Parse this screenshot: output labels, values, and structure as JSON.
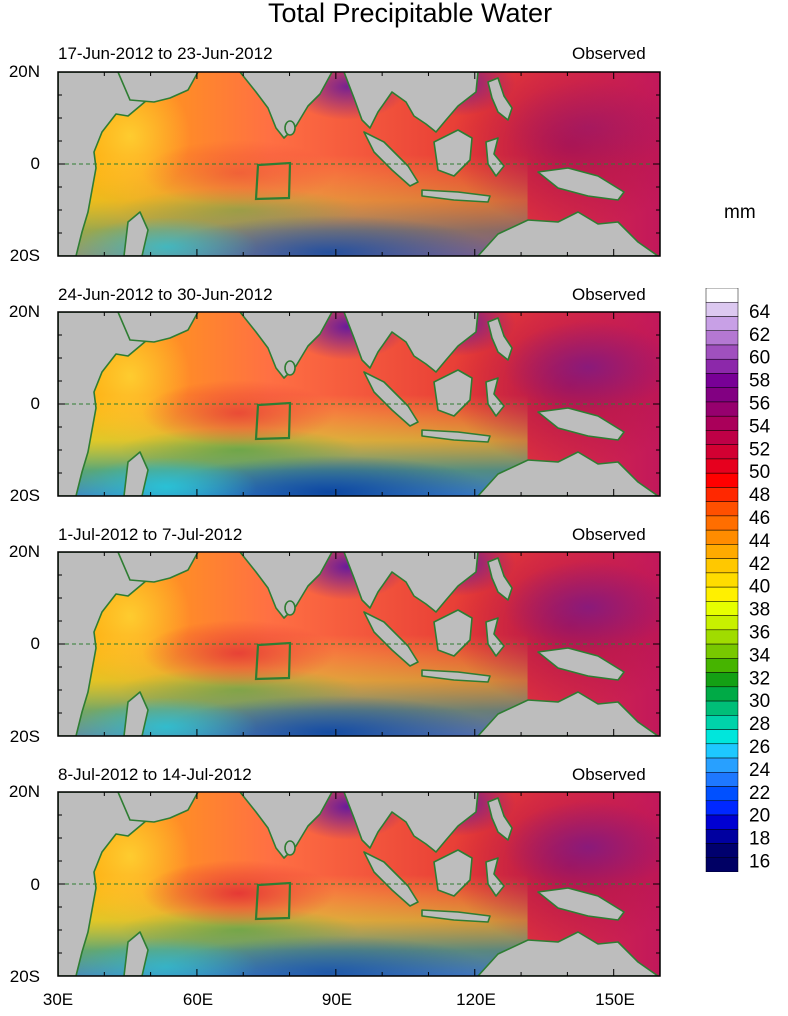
{
  "title": "Total Precipitable Water",
  "unit": "mm",
  "panels": [
    {
      "period": "17-Jun-2012 to 23-Jun-2012",
      "tag": "Observed"
    },
    {
      "period": "24-Jun-2012 to 30-Jun-2012",
      "tag": "Observed"
    },
    {
      "period": "1-Jul-2012 to 7-Jul-2012",
      "tag": "Observed"
    },
    {
      "period": "8-Jul-2012 to 14-Jul-2012",
      "tag": "Observed"
    }
  ],
  "lat_ticks": [
    "20N",
    "0",
    "20S"
  ],
  "lon_ticks": [
    "30E",
    "60E",
    "90E",
    "120E",
    "150E"
  ],
  "colorbar": {
    "labels": [
      "64",
      "62",
      "60",
      "58",
      "56",
      "54",
      "52",
      "50",
      "48",
      "46",
      "44",
      "42",
      "40",
      "38",
      "36",
      "34",
      "32",
      "30",
      "28",
      "26",
      "24",
      "22",
      "20",
      "18",
      "16"
    ],
    "min": 15,
    "max": 66,
    "step": 2
  },
  "colors": {
    "land": "#bdbdbd",
    "coast": "#2e7d32",
    "dry": "#1a237e",
    "moist": "#7b1fa2"
  }
}
